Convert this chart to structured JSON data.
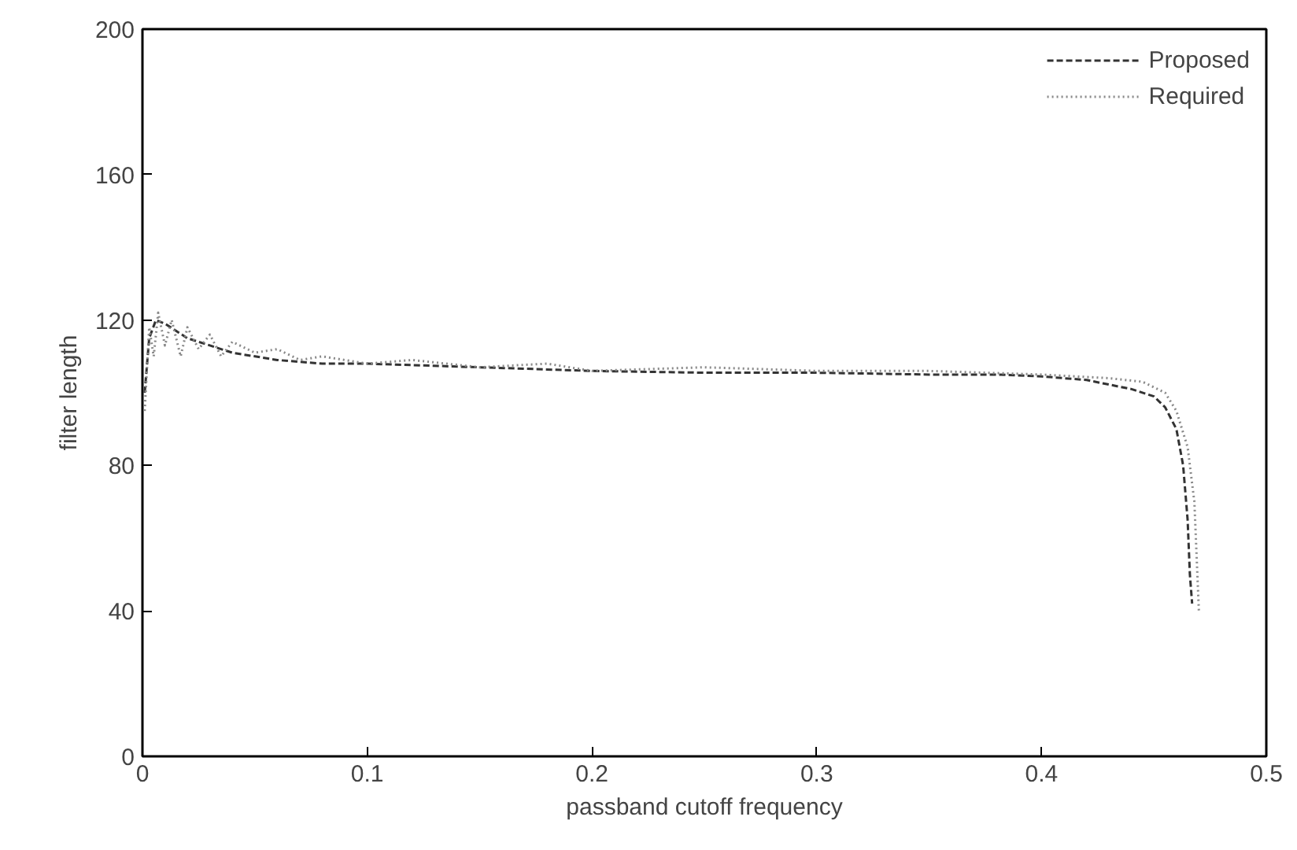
{
  "chart_data": {
    "type": "line",
    "xlabel": "passband cutoff frequency",
    "ylabel": "filter length",
    "xlim": [
      0,
      0.5
    ],
    "ylim": [
      0,
      200
    ],
    "xticks": [
      0,
      0.1,
      0.2,
      0.3,
      0.4,
      0.5
    ],
    "yticks": [
      0,
      40,
      80,
      120,
      160,
      200
    ],
    "grid": false,
    "legend": "top right",
    "series": [
      {
        "name": "Proposed",
        "color": "#333333",
        "line_style": "dashed",
        "x": [
          0.001,
          0.003,
          0.006,
          0.01,
          0.02,
          0.04,
          0.06,
          0.08,
          0.1,
          0.15,
          0.2,
          0.25,
          0.3,
          0.35,
          0.38,
          0.4,
          0.42,
          0.44,
          0.45,
          0.455,
          0.46,
          0.463,
          0.465,
          0.466,
          0.467
        ],
        "values": [
          100,
          115,
          120,
          119,
          115,
          111,
          109,
          108,
          108,
          107,
          106,
          105.5,
          105.5,
          105,
          105,
          104.5,
          103.5,
          101,
          99,
          96,
          90,
          80,
          65,
          50,
          42
        ]
      },
      {
        "name": "Required",
        "color": "#888888",
        "line_style": "dotted",
        "x": [
          0.001,
          0.003,
          0.005,
          0.007,
          0.01,
          0.013,
          0.017,
          0.02,
          0.025,
          0.03,
          0.035,
          0.04,
          0.05,
          0.06,
          0.07,
          0.08,
          0.1,
          0.12,
          0.15,
          0.18,
          0.2,
          0.25,
          0.3,
          0.35,
          0.4,
          0.43,
          0.445,
          0.455,
          0.46,
          0.465,
          0.468,
          0.469,
          0.47
        ],
        "values": [
          95,
          118,
          110,
          122,
          113,
          120,
          110,
          118,
          112,
          116,
          110,
          114,
          111,
          112,
          109,
          110,
          108,
          109,
          107,
          108,
          106,
          107,
          106,
          106,
          105,
          104,
          103,
          100,
          95,
          85,
          70,
          55,
          40
        ]
      }
    ]
  }
}
